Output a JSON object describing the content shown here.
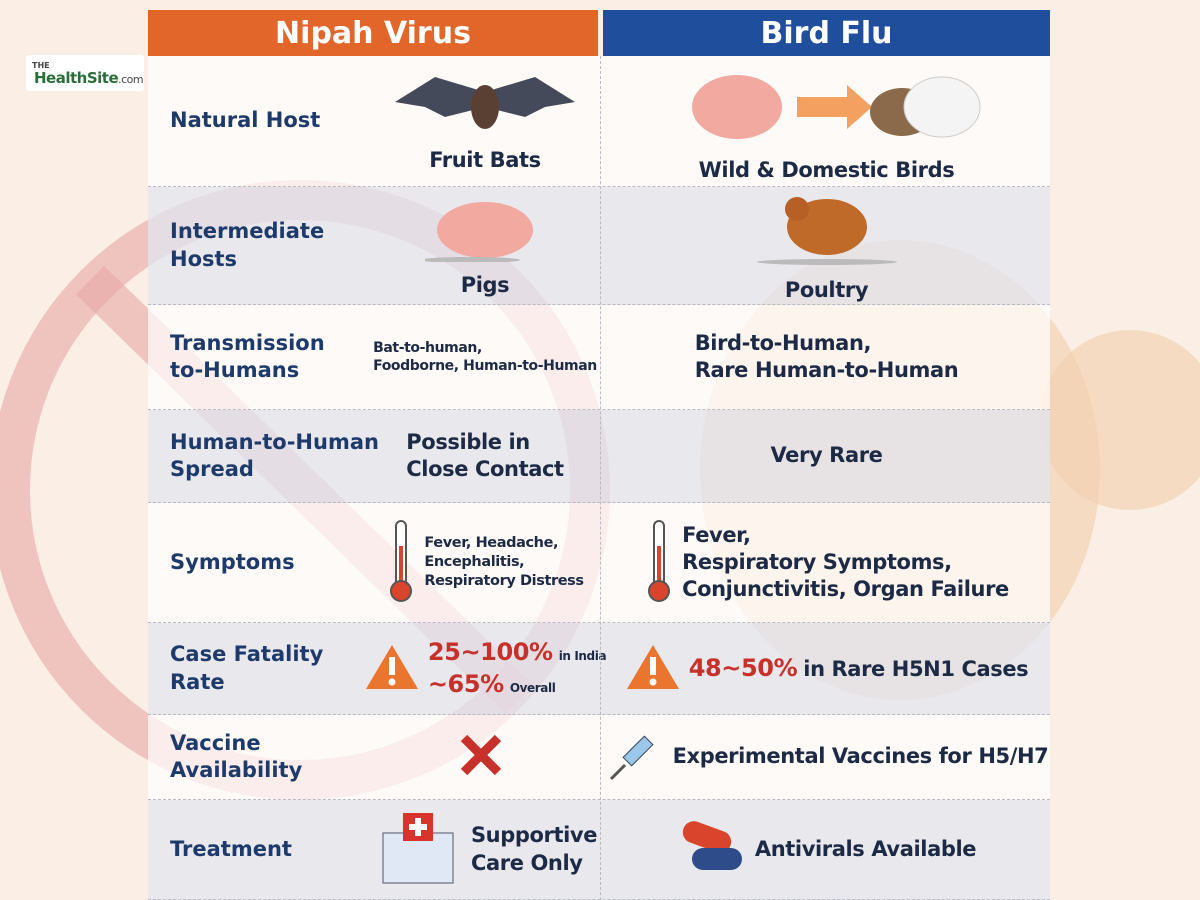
{
  "logo": {
    "small": "THE",
    "main": "HealthSite",
    "suffix": ".com"
  },
  "header": {
    "nipah": "Nipah Virus",
    "bird_flu": "Bird Flu"
  },
  "rows": [
    {
      "label": [
        "Natural Host"
      ],
      "nipah": [
        "Fruit Bats"
      ],
      "bird_flu": [
        "Wild & Domestic Birds"
      ]
    },
    {
      "label": [
        "Intermediate Hosts"
      ],
      "nipah": [
        "Pigs"
      ],
      "bird_flu": [
        "Poultry"
      ]
    },
    {
      "label": [
        "Transmission",
        "to-Humans"
      ],
      "nipah": [
        "Bat-to-human,",
        "Foodborne, Human-to-Human"
      ],
      "bird_flu": [
        "Bird-to-Human,",
        "Rare Human-to-Human"
      ]
    },
    {
      "label": [
        "Human-to-Human",
        "Spread"
      ],
      "nipah": [
        "Possible in",
        "Close Contact"
      ],
      "bird_flu": [
        "Very Rare"
      ]
    },
    {
      "label": [
        "Symptoms"
      ],
      "nipah": [
        "Fever, Headache,",
        "Encephalitis,",
        "Respiratory Distress"
      ],
      "bird_flu": [
        "Fever,",
        "Respiratory Symptoms,",
        "Conjunctivitis, Organ Failure"
      ]
    },
    {
      "label": [
        "Case Fatality Rate"
      ],
      "nipah": [
        {
          "highlight": "25~100%",
          "text": "in India"
        },
        {
          "highlight": "~65%",
          "text": "Overall"
        }
      ],
      "bird_flu": [
        {
          "highlight": "48~50%",
          "text": "in Rare H5N1 Cases"
        }
      ]
    },
    {
      "label": [
        "Vaccine Availability"
      ],
      "nipah": [],
      "bird_flu": [
        "Experimental Vaccines for H5/H7"
      ]
    },
    {
      "label": [
        "Treatment"
      ],
      "nipah": [
        "Supportive",
        "Care Only"
      ],
      "bird_flu": [
        "Antivirals Available"
      ]
    }
  ]
}
